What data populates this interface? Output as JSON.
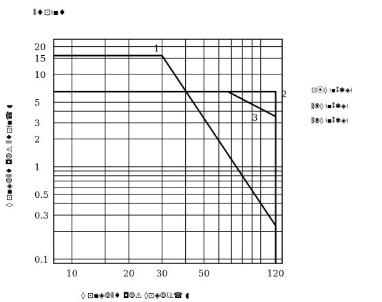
{
  "chart_data": {
    "type": "line",
    "title": "⫴♦⊡⫮▪♦",
    "xlabel": "◊ ⊡▪◈⦾⫴♦ ◘⦾⚠ ◊⊡◈⦾⫱⫫☎ ◖",
    "ylabel": "◊ ⊡▪◈⦾⫴♦ ◘⦾⚠ ⫴♦⊡⫮▪☎ ◖",
    "x_axis": {
      "scale": "log",
      "ticks": [
        10,
        20,
        30,
        50,
        120
      ],
      "tick_labels": [
        "10",
        "20",
        "30",
        "50",
        "120"
      ],
      "range": [
        8,
        130
      ]
    },
    "y_axis": {
      "scale": "log",
      "ticks": [
        0.1,
        0.3,
        0.5,
        1,
        2,
        3,
        5,
        10,
        15,
        20
      ],
      "tick_labels": [
        "0.1",
        "0.3",
        "0.5",
        "1",
        "2",
        "3",
        "5",
        "10",
        "15",
        "20"
      ],
      "range": [
        0.09,
        24
      ]
    },
    "grid": true,
    "series": [
      {
        "label": "1",
        "x": [
          8,
          30,
          120,
          120
        ],
        "y": [
          16,
          16,
          0.23,
          0.09
        ]
      },
      {
        "label": "2",
        "x": [
          8,
          120,
          120
        ],
        "y": [
          6.5,
          6.5,
          0.09
        ]
      },
      {
        "label": "3",
        "x": [
          67,
          120
        ],
        "y": [
          6.5,
          3.5
        ]
      }
    ],
    "legend": {
      "placement": "right",
      "entries": [
        "⊡⦿◊ ⫮▪⁑✱◈⫮",
        "⫼⦿◊ ⫮▪⁑✱◈⫮",
        "⫼⦿◊ ⫮▪⁑✱◈⫮"
      ]
    }
  }
}
